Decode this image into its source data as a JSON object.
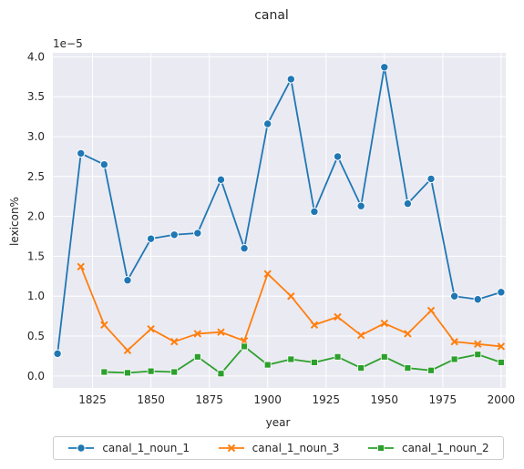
{
  "chart_data": {
    "type": "line",
    "title": "canal",
    "xlabel": "year",
    "ylabel": "lexicon%",
    "y_offset_label": "1e−5",
    "xlim": [
      1808,
      2002
    ],
    "ylim": [
      -0.15,
      4.05
    ],
    "xticks": [
      1825,
      1850,
      1875,
      1900,
      1925,
      1950,
      1975,
      2000
    ],
    "yticks": [
      0.0,
      0.5,
      1.0,
      1.5,
      2.0,
      2.5,
      3.0,
      3.5,
      4.0
    ],
    "ytick_labels": [
      "0.0",
      "0.5",
      "1.0",
      "1.5",
      "2.0",
      "2.5",
      "3.0",
      "3.5",
      "4.0"
    ],
    "grid": true,
    "legend_position": "below",
    "series": [
      {
        "name": "canal_1_noun_1",
        "color": "#1f77b4",
        "marker": "circle",
        "x": [
          1810,
          1820,
          1830,
          1840,
          1850,
          1860,
          1870,
          1880,
          1890,
          1900,
          1910,
          1920,
          1930,
          1940,
          1950,
          1960,
          1970,
          1980,
          1990,
          2000
        ],
        "y": [
          0.28,
          2.79,
          2.65,
          1.2,
          1.72,
          1.77,
          1.79,
          2.46,
          1.6,
          3.16,
          3.72,
          2.06,
          2.75,
          2.13,
          3.87,
          2.16,
          2.47,
          1.0,
          0.96,
          1.05
        ]
      },
      {
        "name": "canal_1_noun_3",
        "color": "#ff7f0e",
        "marker": "x",
        "x": [
          1820,
          1830,
          1840,
          1850,
          1860,
          1870,
          1880,
          1890,
          1900,
          1910,
          1920,
          1930,
          1940,
          1950,
          1960,
          1970,
          1980,
          1990,
          2000
        ],
        "y": [
          1.37,
          0.64,
          0.32,
          0.59,
          0.43,
          0.53,
          0.55,
          0.44,
          1.28,
          1.0,
          0.64,
          0.74,
          0.51,
          0.66,
          0.53,
          0.82,
          0.43,
          0.4,
          0.37
        ]
      },
      {
        "name": "canal_1_noun_2",
        "color": "#2ca02c",
        "marker": "square",
        "x": [
          1830,
          1840,
          1850,
          1860,
          1870,
          1880,
          1890,
          1900,
          1910,
          1920,
          1930,
          1940,
          1950,
          1960,
          1970,
          1980,
          1990,
          2000
        ],
        "y": [
          0.05,
          0.04,
          0.06,
          0.05,
          0.24,
          0.03,
          0.37,
          0.14,
          0.21,
          0.17,
          0.24,
          0.1,
          0.24,
          0.1,
          0.07,
          0.21,
          0.27,
          0.17
        ]
      }
    ]
  }
}
